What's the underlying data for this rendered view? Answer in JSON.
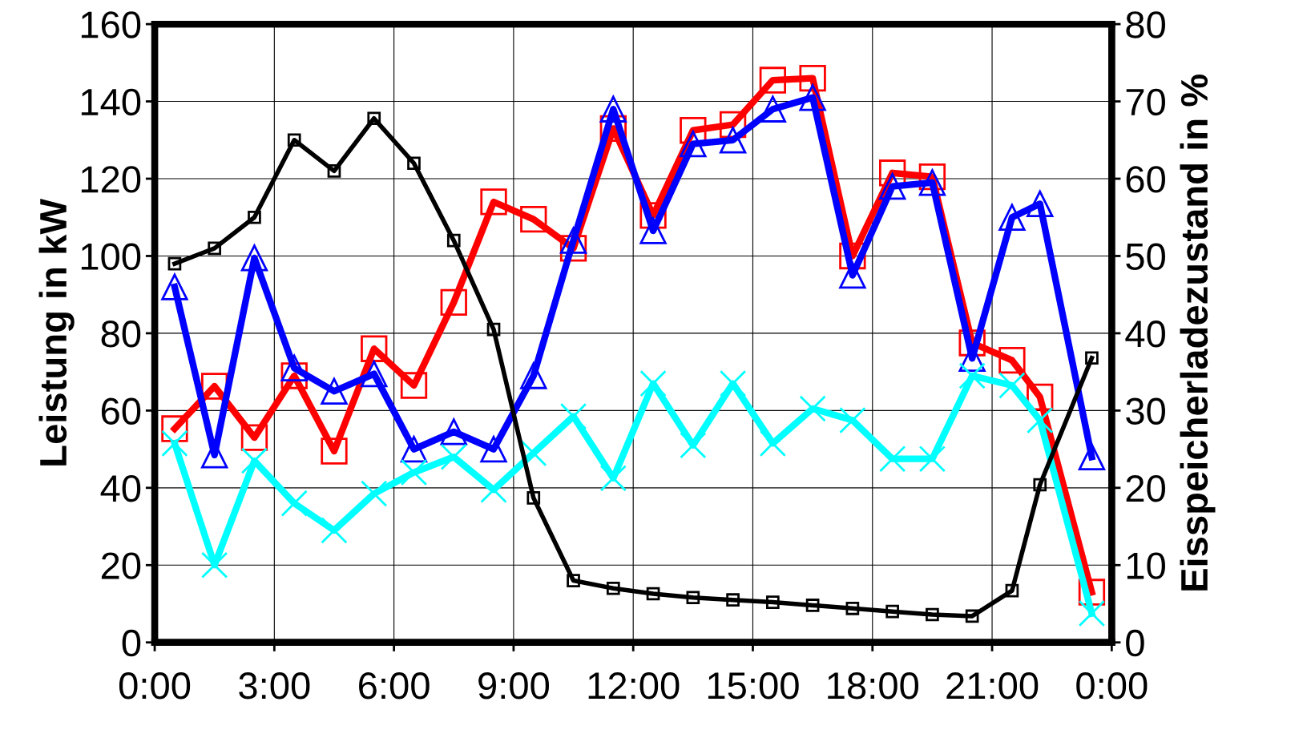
{
  "chart_data": {
    "type": "line",
    "ylabel": "Leistung in kW",
    "y2label": "Eisspeicherladezustand in %",
    "x": [
      0.5,
      1.5,
      2.5,
      3.5,
      4.5,
      5.5,
      6.5,
      7.5,
      8.5,
      9.5,
      10.5,
      11.5,
      12.5,
      13.5,
      14.5,
      15.5,
      16.5,
      17.5,
      18.5,
      19.5,
      20.5,
      21.5,
      22.2,
      23.5
    ],
    "series": [
      {
        "color": "#ff0000",
        "marker": "square",
        "values": [
          55.3,
          66.3,
          53,
          69,
          49.5,
          76,
          66.5,
          88,
          114,
          109.5,
          102,
          133,
          110.5,
          132.5,
          134,
          145.5,
          146,
          100,
          121.5,
          120.5,
          77.5,
          73,
          63.5,
          13
        ]
      },
      {
        "color": "#0000ff",
        "marker": "triangle",
        "values": [
          92,
          48.5,
          99.5,
          71,
          65,
          69.5,
          50,
          54.5,
          50,
          69,
          104,
          138,
          106.5,
          129,
          130,
          138,
          141,
          95,
          118,
          119,
          73.5,
          110,
          113.5,
          48
        ]
      },
      {
        "color": "#00ffff",
        "marker": "cross",
        "values": [
          51.5,
          20,
          47,
          36,
          29,
          38.5,
          44,
          48,
          39.5,
          49,
          58.5,
          42.5,
          67,
          51,
          67,
          51.5,
          60.5,
          57.5,
          47.5,
          47.5,
          69,
          66.5,
          57.5,
          7.5
        ]
      },
      {
        "color": "#000000",
        "marker": "square",
        "axis": "y2",
        "values": [
          49,
          51,
          55,
          65,
          61,
          67.8,
          62,
          52,
          40.5,
          18.7,
          8,
          7,
          6.3,
          5.8,
          5.5,
          5.2,
          4.8,
          4.4,
          4,
          3.6,
          3.4,
          6.7,
          20.4,
          36.8
        ]
      }
    ],
    "xlim": [
      0,
      24
    ],
    "xticks": [
      {
        "value": 0,
        "label": "0:00"
      },
      {
        "value": 3,
        "label": "3:00"
      },
      {
        "value": 6,
        "label": "6:00"
      },
      {
        "value": 9,
        "label": "9:00"
      },
      {
        "value": 12,
        "label": "12:00"
      },
      {
        "value": 15,
        "label": "15:00"
      },
      {
        "value": 18,
        "label": "18:00"
      },
      {
        "value": 21,
        "label": "21:00"
      },
      {
        "value": 24,
        "label": "0:00"
      }
    ],
    "ylim": [
      0,
      160
    ],
    "yticks": [
      0,
      20,
      40,
      60,
      80,
      100,
      120,
      140,
      160
    ],
    "y2lim": [
      0,
      80
    ],
    "y2ticks": [
      0,
      10,
      20,
      30,
      40,
      50,
      60,
      70,
      80
    ],
    "grid": true,
    "legend": false,
    "line_style": "solid"
  }
}
